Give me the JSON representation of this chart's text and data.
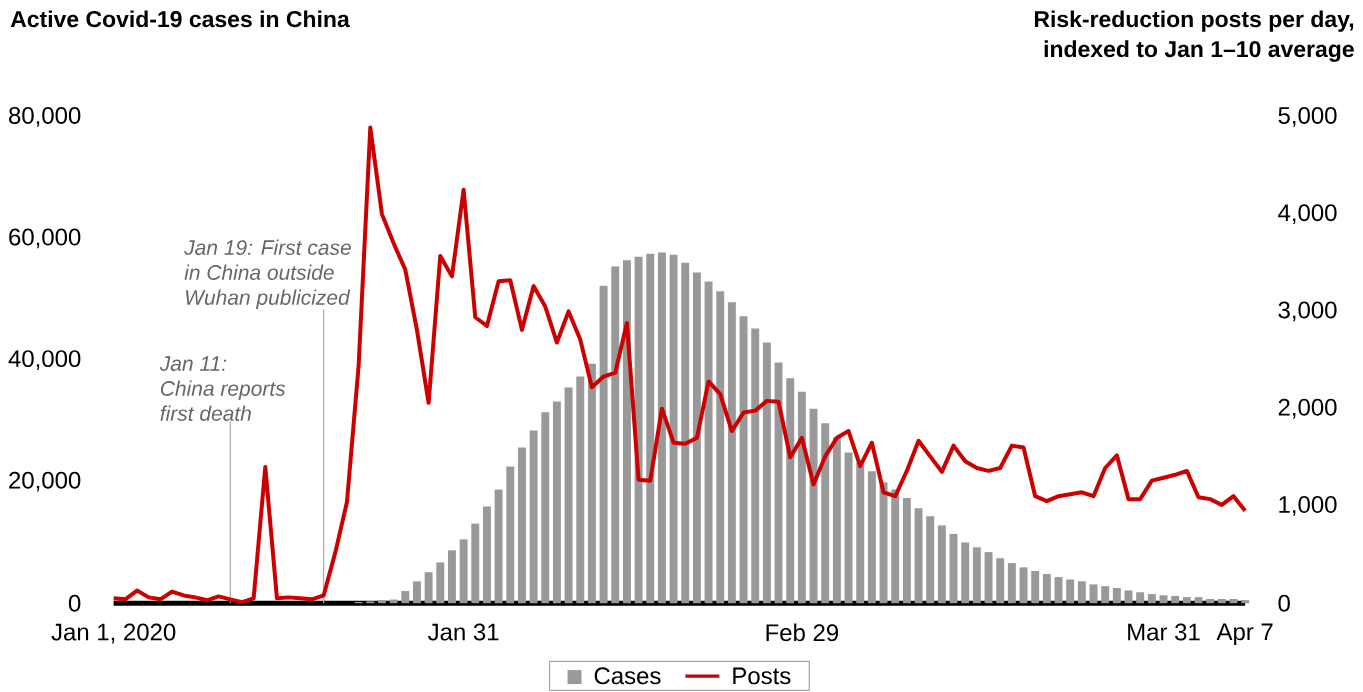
{
  "chart_data": {
    "type": "bar",
    "ylabel": "Active Covid-19 cases in China",
    "y2label": "Risk-reduction posts per day, indexed to Jan 1–10 average",
    "x": [
      "2020-01-01",
      "2020-01-02",
      "2020-01-03",
      "2020-01-04",
      "2020-01-05",
      "2020-01-06",
      "2020-01-07",
      "2020-01-08",
      "2020-01-09",
      "2020-01-10",
      "2020-01-11",
      "2020-01-12",
      "2020-01-13",
      "2020-01-14",
      "2020-01-15",
      "2020-01-16",
      "2020-01-17",
      "2020-01-18",
      "2020-01-19",
      "2020-01-20",
      "2020-01-21",
      "2020-01-22",
      "2020-01-23",
      "2020-01-24",
      "2020-01-25",
      "2020-01-26",
      "2020-01-27",
      "2020-01-28",
      "2020-01-29",
      "2020-01-30",
      "2020-01-31",
      "2020-02-01",
      "2020-02-02",
      "2020-02-03",
      "2020-02-04",
      "2020-02-05",
      "2020-02-06",
      "2020-02-07",
      "2020-02-08",
      "2020-02-09",
      "2020-02-10",
      "2020-02-11",
      "2020-02-12",
      "2020-02-13",
      "2020-02-14",
      "2020-02-15",
      "2020-02-16",
      "2020-02-17",
      "2020-02-18",
      "2020-02-19",
      "2020-02-20",
      "2020-02-21",
      "2020-02-22",
      "2020-02-23",
      "2020-02-24",
      "2020-02-25",
      "2020-02-26",
      "2020-02-27",
      "2020-02-28",
      "2020-02-29",
      "2020-03-01",
      "2020-03-02",
      "2020-03-03",
      "2020-03-04",
      "2020-03-05",
      "2020-03-06",
      "2020-03-07",
      "2020-03-08",
      "2020-03-09",
      "2020-03-10",
      "2020-03-11",
      "2020-03-12",
      "2020-03-13",
      "2020-03-14",
      "2020-03-15",
      "2020-03-16",
      "2020-03-17",
      "2020-03-18",
      "2020-03-19",
      "2020-03-20",
      "2020-03-21",
      "2020-03-22",
      "2020-03-23",
      "2020-03-24",
      "2020-03-25",
      "2020-03-26",
      "2020-03-27",
      "2020-03-28",
      "2020-03-29",
      "2020-03-30",
      "2020-03-31",
      "2020-04-01",
      "2020-04-02",
      "2020-04-03",
      "2020-04-04",
      "2020-04-05",
      "2020-04-06",
      "2020-04-07"
    ],
    "xlim": [
      "2020-01-01",
      "2020-04-07"
    ],
    "xticks": [
      {
        "value": "2020-01-01",
        "label": "Jan 1, 2020"
      },
      {
        "value": "2020-01-31",
        "label": "Jan 31"
      },
      {
        "value": "2020-02-29",
        "label": "Feb 29"
      },
      {
        "value": "2020-03-31",
        "label": "Mar 31"
      },
      {
        "value": "2020-04-07",
        "label": "Apr 7"
      }
    ],
    "ylim": [
      0,
      80000
    ],
    "yticks": [
      0,
      {
        "value": 20000,
        "label": "20,000"
      },
      {
        "value": 40000,
        "label": "40,000"
      },
      {
        "value": 60000,
        "label": "60,000"
      },
      {
        "value": 80000,
        "label": "80,000"
      }
    ],
    "y2lim": [
      0,
      5000
    ],
    "y2ticks": [
      0,
      {
        "value": 1000,
        "label": "1,000"
      },
      {
        "value": 2000,
        "label": "2,000"
      },
      {
        "value": 3000,
        "label": "3,000"
      },
      {
        "value": 4000,
        "label": "4,000"
      },
      {
        "value": 5000,
        "label": "5,000"
      }
    ],
    "legend": "bottom",
    "series": [
      {
        "name": "Cases",
        "color": "#999999",
        "values": [
          null,
          null,
          null,
          null,
          null,
          null,
          null,
          null,
          null,
          null,
          null,
          null,
          null,
          null,
          null,
          null,
          null,
          null,
          null,
          null,
          null,
          200,
          300,
          500,
          600,
          2000,
          3600,
          5100,
          6700,
          8700,
          10500,
          13100,
          15900,
          18700,
          22500,
          25600,
          28400,
          31400,
          33200,
          35500,
          37300,
          39400,
          52200,
          55400,
          56400,
          57000,
          57500,
          57700,
          57300,
          56000,
          54400,
          52900,
          51300,
          49500,
          47200,
          45200,
          42900,
          39600,
          37000,
          34800,
          32000,
          29600,
          27300,
          24800,
          23200,
          21700,
          19900,
          18700,
          17300,
          15600,
          14300,
          12800,
          11400,
          10000,
          9200,
          8400,
          7400,
          6600,
          5900,
          5300,
          4800,
          4300,
          3900,
          3600,
          3100,
          2800,
          2500,
          2100,
          1800,
          1500,
          1300,
          1200,
          1000,
          1000,
          700,
          700,
          700,
          500
        ]
      },
      {
        "name": "Posts",
        "type": "line",
        "axis": "y2",
        "color": "#cc0000",
        "values": [
          50,
          40,
          130,
          60,
          40,
          120,
          80,
          60,
          30,
          70,
          40,
          10,
          50,
          1400,
          50,
          60,
          50,
          40,
          80,
          520,
          1040,
          2440,
          4890,
          4000,
          3700,
          3430,
          2810,
          2060,
          3570,
          3360,
          4250,
          2940,
          2850,
          3310,
          3320,
          2810,
          3260,
          3050,
          2680,
          3000,
          2710,
          2220,
          2330,
          2370,
          2880,
          1270,
          1260,
          2000,
          1650,
          1640,
          1700,
          2280,
          2150,
          1770,
          1960,
          1980,
          2080,
          2070,
          1500,
          1700,
          1220,
          1510,
          1700,
          1770,
          1410,
          1650,
          1140,
          1100,
          1360,
          1670,
          1510,
          1350,
          1620,
          1460,
          1390,
          1360,
          1390,
          1620,
          1600,
          1100,
          1050,
          1100,
          1120,
          1140,
          1100,
          1390,
          1520,
          1070,
          1070,
          1260,
          1290,
          1320,
          1360,
          1090,
          1070,
          1010,
          1100,
          950
        ]
      }
    ],
    "ref_lines": [
      {
        "axis": "x",
        "value": "2020-01-11",
        "label": "Jan 11: China reports first death",
        "color": "#aaaaaa"
      },
      {
        "axis": "x",
        "value": "2020-01-19",
        "label": "Jan 19: First case in China outside Wuhan publicized",
        "color": "#aaaaaa"
      }
    ]
  }
}
